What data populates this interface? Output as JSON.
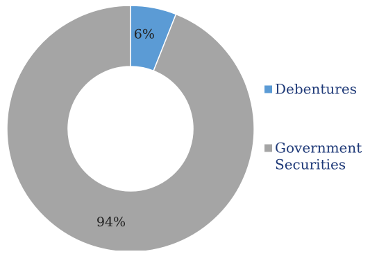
{
  "chart_data": {
    "type": "pie",
    "style": "donut",
    "legend_position": "right",
    "slices": [
      {
        "name": "Debentures",
        "value": 6,
        "label": "6%",
        "color": "#5b9bd5"
      },
      {
        "name": "Government Securities",
        "value": 94,
        "label": "94%",
        "color": "#a5a5a5"
      }
    ],
    "legend": [
      {
        "lines": [
          "Debentures"
        ]
      },
      {
        "lines": [
          "Government",
          "Securities"
        ]
      }
    ]
  }
}
